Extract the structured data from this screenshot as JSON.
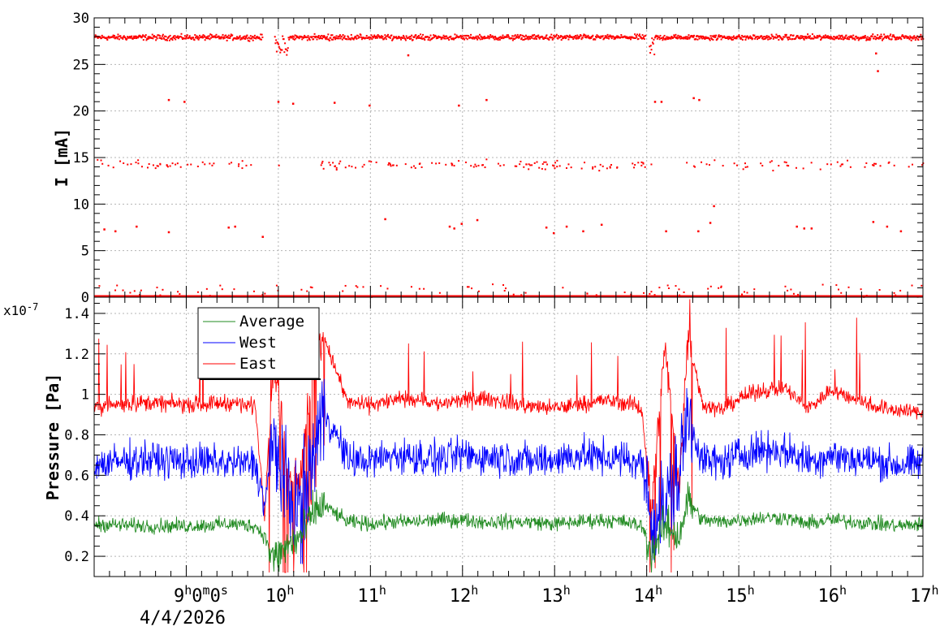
{
  "chart_data": [
    {
      "type": "scatter",
      "title": "",
      "ylabel": "I [mA]",
      "xlabel": "",
      "ylim": [
        0,
        30
      ],
      "yticks": [
        "0",
        "5",
        "10",
        "15",
        "20",
        "25",
        "30"
      ],
      "grid": true,
      "x_hours": [
        8.0,
        17.0
      ],
      "series": [
        {
          "color": "#ff0000",
          "main_band_mA": 27.9,
          "secondary_band_mA": 14.2,
          "baseline_mA": 0.0,
          "gaps_hours": [
            [
              9.82,
              9.95
            ],
            [
              13.98,
              14.02
            ]
          ],
          "sparse_points": [
            {
              "x": 8.8,
              "y": 21.2
            },
            {
              "x": 8.97,
              "y": 21.0
            },
            {
              "x": 9.99,
              "y": 21.0
            },
            {
              "x": 10.15,
              "y": 20.8
            },
            {
              "x": 10.6,
              "y": 20.9
            },
            {
              "x": 10.98,
              "y": 20.6
            },
            {
              "x": 11.95,
              "y": 20.6
            },
            {
              "x": 12.25,
              "y": 21.2
            },
            {
              "x": 14.08,
              "y": 21.0
            },
            {
              "x": 14.15,
              "y": 21.0
            },
            {
              "x": 14.5,
              "y": 21.4
            },
            {
              "x": 14.56,
              "y": 21.2
            },
            {
              "x": 11.4,
              "y": 26.0
            },
            {
              "x": 16.5,
              "y": 24.3
            },
            {
              "x": 16.48,
              "y": 26.2
            },
            {
              "x": 8.1,
              "y": 7.3
            },
            {
              "x": 8.22,
              "y": 7.1
            },
            {
              "x": 8.45,
              "y": 7.6
            },
            {
              "x": 8.8,
              "y": 7.0
            },
            {
              "x": 9.45,
              "y": 7.5
            },
            {
              "x": 9.52,
              "y": 7.6
            },
            {
              "x": 9.82,
              "y": 6.5
            },
            {
              "x": 11.15,
              "y": 8.4
            },
            {
              "x": 11.85,
              "y": 7.6
            },
            {
              "x": 11.9,
              "y": 7.4
            },
            {
              "x": 11.98,
              "y": 7.9
            },
            {
              "x": 12.15,
              "y": 8.3
            },
            {
              "x": 12.9,
              "y": 7.5
            },
            {
              "x": 12.98,
              "y": 6.9
            },
            {
              "x": 13.12,
              "y": 7.6
            },
            {
              "x": 13.3,
              "y": 7.1
            },
            {
              "x": 13.5,
              "y": 7.8
            },
            {
              "x": 14.2,
              "y": 7.1
            },
            {
              "x": 14.55,
              "y": 7.1
            },
            {
              "x": 14.72,
              "y": 9.8
            },
            {
              "x": 14.68,
              "y": 8.0
            },
            {
              "x": 15.62,
              "y": 7.6
            },
            {
              "x": 15.7,
              "y": 7.4
            },
            {
              "x": 15.78,
              "y": 7.4
            },
            {
              "x": 16.45,
              "y": 8.1
            },
            {
              "x": 16.6,
              "y": 7.6
            },
            {
              "x": 16.75,
              "y": 7.1
            }
          ]
        }
      ]
    },
    {
      "type": "line",
      "title": "",
      "ylabel": "Pressure [Pa]",
      "xlabel": "",
      "yexponent": "x10",
      "yexponent_power": "-7",
      "ylim": [
        0.1,
        1.48
      ],
      "yticks": [
        "0.2",
        "0.4",
        "0.6",
        "0.8",
        "1",
        "1.2",
        "1.4"
      ],
      "ytick_values": [
        0.2,
        0.4,
        0.6,
        0.8,
        1.0,
        1.2,
        1.4
      ],
      "grid": true,
      "legend": {
        "placement": "top-left",
        "entries": [
          "Average",
          "West",
          "East"
        ]
      },
      "x": [
        8.0,
        8.5,
        9.0,
        9.5,
        9.75,
        9.85,
        9.95,
        10.1,
        10.25,
        10.4,
        10.5,
        10.75,
        11.0,
        11.25,
        11.5,
        11.75,
        12.0,
        12.25,
        12.5,
        12.75,
        13.0,
        13.25,
        13.5,
        13.75,
        13.95,
        14.05,
        14.2,
        14.35,
        14.45,
        14.6,
        14.8,
        15.0,
        15.25,
        15.5,
        15.75,
        16.0,
        16.25,
        16.5,
        16.75,
        17.0
      ],
      "series": [
        {
          "name": "Average",
          "color": "#228b22",
          "values": [
            0.36,
            0.35,
            0.35,
            0.36,
            0.35,
            0.3,
            0.18,
            0.25,
            0.3,
            0.43,
            0.45,
            0.37,
            0.36,
            0.37,
            0.37,
            0.38,
            0.38,
            0.37,
            0.37,
            0.37,
            0.36,
            0.37,
            0.38,
            0.37,
            0.35,
            0.22,
            0.35,
            0.3,
            0.48,
            0.38,
            0.37,
            0.38,
            0.39,
            0.39,
            0.36,
            0.38,
            0.37,
            0.36,
            0.35,
            0.36
          ]
        },
        {
          "name": "West",
          "color": "#0000ff",
          "values": [
            0.65,
            0.68,
            0.67,
            0.66,
            0.66,
            0.45,
            0.78,
            0.5,
            0.42,
            0.75,
            0.92,
            0.68,
            0.67,
            0.7,
            0.69,
            0.68,
            0.7,
            0.69,
            0.69,
            0.67,
            0.68,
            0.7,
            0.69,
            0.68,
            0.66,
            0.38,
            0.45,
            0.6,
            0.9,
            0.68,
            0.66,
            0.7,
            0.73,
            0.72,
            0.67,
            0.7,
            0.68,
            0.67,
            0.65,
            0.66
          ]
        },
        {
          "name": "East",
          "color": "#ff0000",
          "values": [
            0.94,
            0.96,
            0.95,
            0.96,
            0.94,
            0.42,
            1.2,
            0.6,
            0.62,
            1.25,
            1.28,
            0.96,
            0.95,
            0.97,
            0.98,
            0.95,
            0.97,
            0.98,
            0.96,
            0.94,
            0.93,
            0.95,
            0.97,
            0.96,
            0.93,
            0.4,
            1.25,
            0.55,
            1.3,
            0.96,
            0.92,
            0.98,
            1.02,
            1.03,
            0.93,
            1.02,
            0.98,
            0.94,
            0.92,
            0.91
          ]
        }
      ]
    }
  ],
  "x_axis": {
    "start_label_time": "9",
    "start_label_h": "h",
    "start_label_0m": "0",
    "start_label_m": "m",
    "start_label_0s": "0",
    "start_label_s": "s",
    "start_label_date": "4/4/2026",
    "hour_ticks": [
      {
        "value": 10,
        "label": "10",
        "unit": "h"
      },
      {
        "value": 11,
        "label": "11",
        "unit": "h"
      },
      {
        "value": 12,
        "label": "12",
        "unit": "h"
      },
      {
        "value": 13,
        "label": "13",
        "unit": "h"
      },
      {
        "value": 14,
        "label": "14",
        "unit": "h"
      },
      {
        "value": 15,
        "label": "15",
        "unit": "h"
      },
      {
        "value": 16,
        "label": "16",
        "unit": "h"
      },
      {
        "value": 17,
        "label": "17",
        "unit": "h"
      }
    ]
  }
}
